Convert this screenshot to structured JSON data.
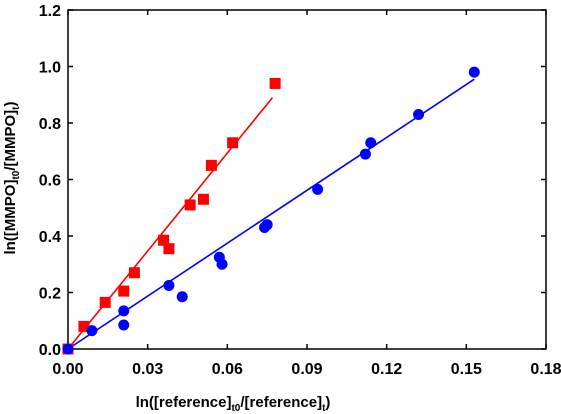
{
  "chart_data": {
    "type": "scatter",
    "xlabel": {
      "base": "ln([reference]",
      "sub1": "t0",
      "mid": "/[reference]",
      "sub2": "t",
      "end": ")"
    },
    "ylabel": {
      "base": "ln([MMPO]",
      "sub1": "t0",
      "mid": "/[MMPO]",
      "sub2": "t",
      "end": ")"
    },
    "xlim": [
      0,
      0.18
    ],
    "ylim": [
      0,
      1.2
    ],
    "xticks": [
      "0.00",
      "0.03",
      "0.06",
      "0.09",
      "0.12",
      "0.15",
      "0.18"
    ],
    "yticks": [
      "0.0",
      "0.2",
      "0.4",
      "0.6",
      "0.8",
      "1.0",
      "1.2"
    ],
    "grid": false,
    "series": [
      {
        "marker": "square",
        "color": "#ff0000",
        "points": [
          [
            0.0,
            0.0
          ],
          [
            0.006,
            0.08
          ],
          [
            0.014,
            0.165
          ],
          [
            0.021,
            0.205
          ],
          [
            0.025,
            0.27
          ],
          [
            0.036,
            0.385
          ],
          [
            0.038,
            0.355
          ],
          [
            0.046,
            0.51
          ],
          [
            0.051,
            0.53
          ],
          [
            0.054,
            0.65
          ],
          [
            0.062,
            0.73
          ],
          [
            0.078,
            0.94
          ]
        ],
        "fit": [
          [
            0.0,
            0.0
          ],
          [
            0.077,
            0.89
          ]
        ]
      },
      {
        "marker": "circle",
        "color": "#0000ff",
        "points": [
          [
            0.0,
            0.0
          ],
          [
            0.009,
            0.065
          ],
          [
            0.021,
            0.085
          ],
          [
            0.021,
            0.135
          ],
          [
            0.038,
            0.225
          ],
          [
            0.043,
            0.185
          ],
          [
            0.057,
            0.325
          ],
          [
            0.058,
            0.3
          ],
          [
            0.074,
            0.43
          ],
          [
            0.075,
            0.44
          ],
          [
            0.094,
            0.565
          ],
          [
            0.112,
            0.69
          ],
          [
            0.114,
            0.73
          ],
          [
            0.132,
            0.83
          ],
          [
            0.153,
            0.98
          ]
        ],
        "fit": [
          [
            0.0,
            0.0
          ],
          [
            0.153,
            0.955
          ]
        ]
      }
    ]
  }
}
